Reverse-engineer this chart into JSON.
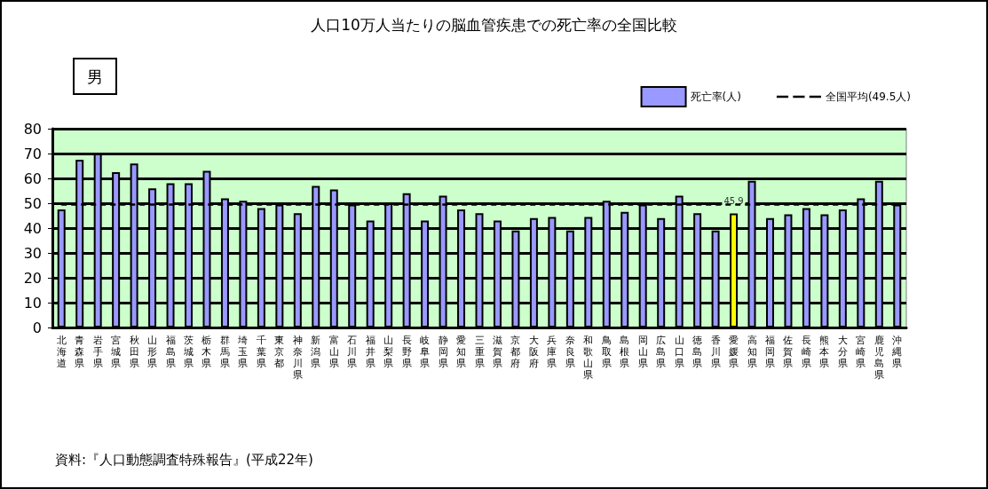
{
  "chart_data": {
    "type": "bar",
    "title": "人口10万人当たりの脳血管疾患での死亡率の全国比較",
    "annotations": [
      "男",
      "資料:『人口動態調査特殊報告』(平成22年)"
    ],
    "categories": [
      "北海道",
      "青森県",
      "岩手県",
      "宮城県",
      "秋田県",
      "山形県",
      "福島県",
      "茨城県",
      "栃木県",
      "群馬県",
      "埼玉県",
      "千葉県",
      "東京都",
      "神奈川県",
      "新潟県",
      "富山県",
      "石川県",
      "福井県",
      "山梨県",
      "長野県",
      "岐阜県",
      "静岡県",
      "愛知県",
      "三重県",
      "滋賀県",
      "京都府",
      "大阪府",
      "兵庫県",
      "奈良県",
      "和歌山県",
      "鳥取県",
      "島根県",
      "岡山県",
      "広島県",
      "山口県",
      "徳島県",
      "香川県",
      "愛媛県",
      "高知県",
      "福岡県",
      "佐賀県",
      "長崎県",
      "熊本県",
      "大分県",
      "宮崎県",
      "鹿児島県",
      "沖縄県"
    ],
    "series": [
      {
        "name": "死亡率(人)",
        "color": "#9999ff",
        "colors": [
          "#9999ff",
          "#9999ff",
          "#9999ff",
          "#9999ff",
          "#9999ff",
          "#9999ff",
          "#9999ff",
          "#9999ff",
          "#9999ff",
          "#9999ff",
          "#9999ff",
          "#9999ff",
          "#9999ff",
          "#9999ff",
          "#9999ff",
          "#9999ff",
          "#9999ff",
          "#9999ff",
          "#9999ff",
          "#9999ff",
          "#9999ff",
          "#9999ff",
          "#9999ff",
          "#9999ff",
          "#9999ff",
          "#9999ff",
          "#9999ff",
          "#9999ff",
          "#9999ff",
          "#9999ff",
          "#9999ff",
          "#9999ff",
          "#9999ff",
          "#9999ff",
          "#9999ff",
          "#9999ff",
          "#9999ff",
          "#ffff00",
          "#9999ff",
          "#9999ff",
          "#9999ff",
          "#9999ff",
          "#9999ff",
          "#9999ff",
          "#9999ff",
          "#9999ff",
          "#9999ff"
        ],
        "values": [
          47.5,
          67.5,
          70,
          62.5,
          66,
          56,
          58,
          58,
          63,
          52,
          51,
          48,
          49.5,
          46,
          57,
          55.5,
          49.5,
          43,
          50,
          54,
          43,
          53,
          47.5,
          46,
          43,
          39,
          44,
          44.5,
          39,
          44.5,
          51,
          46.5,
          49.5,
          44,
          53,
          46,
          39,
          45.9,
          59,
          44,
          45.5,
          48,
          45.5,
          47.5,
          52,
          59,
          49.5
        ],
        "value_labels": [
          null,
          null,
          null,
          null,
          null,
          null,
          null,
          null,
          null,
          null,
          null,
          null,
          null,
          null,
          null,
          null,
          null,
          null,
          null,
          null,
          null,
          null,
          null,
          null,
          null,
          null,
          null,
          null,
          null,
          null,
          null,
          null,
          null,
          null,
          null,
          null,
          null,
          "45.9",
          null,
          null,
          null,
          null,
          null,
          null,
          null,
          null,
          null
        ]
      },
      {
        "name": "全国平均(49.5人)",
        "type": "line",
        "color": "#000000",
        "line_style": "dashed",
        "marker": "none",
        "values": [
          49.5,
          49.5,
          49.5,
          49.5,
          49.5,
          49.5,
          49.5,
          49.5,
          49.5,
          49.5,
          49.5,
          49.5,
          49.5,
          49.5,
          49.5,
          49.5,
          49.5,
          49.5,
          49.5,
          49.5,
          49.5,
          49.5,
          49.5,
          49.5,
          49.5,
          49.5,
          49.5,
          49.5,
          49.5,
          49.5,
          49.5,
          49.5,
          49.5,
          49.5,
          49.5,
          49.5,
          49.5,
          49.5,
          49.5,
          49.5,
          49.5,
          49.5,
          49.5,
          49.5,
          49.5,
          49.5,
          49.5
        ]
      }
    ],
    "ylim": [
      0,
      80
    ],
    "yticks": [
      0,
      10,
      20,
      30,
      40,
      50,
      60,
      70,
      80
    ],
    "grid": true,
    "legend": "top right"
  }
}
